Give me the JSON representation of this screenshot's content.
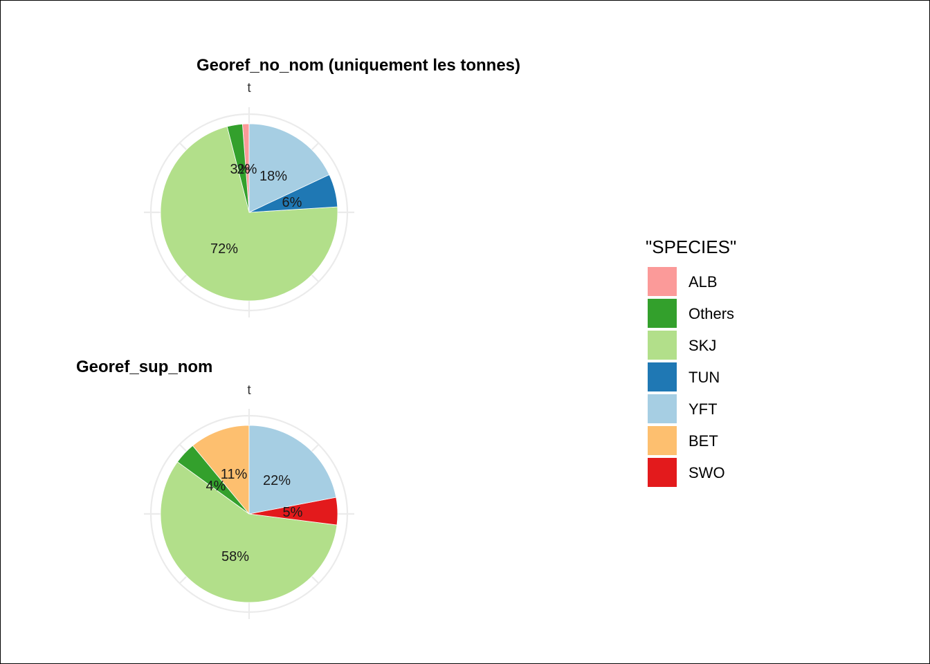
{
  "legend": {
    "title": "\"SPECIES\"",
    "items": [
      {
        "label": "ALB",
        "color": "#FB9A99"
      },
      {
        "label": "Others",
        "color": "#33A02C"
      },
      {
        "label": "SKJ",
        "color": "#B2DF8A"
      },
      {
        "label": "TUN",
        "color": "#1F78B4"
      },
      {
        "label": "YFT",
        "color": "#A6CEE3"
      },
      {
        "label": "BET",
        "color": "#FDBF6F"
      },
      {
        "label": "SWO",
        "color": "#E31A1C"
      }
    ]
  },
  "chart_data": [
    {
      "type": "pie",
      "title": "Georef_no_nom (uniquement les tonnes)",
      "axis_label": "t",
      "start": "12 o'clock",
      "direction": "counterclockwise",
      "slices": [
        {
          "label": "ALB",
          "value": 1.2,
          "text": "",
          "color": "#FB9A99"
        },
        {
          "label": "Others",
          "value": 2.8,
          "text": "3%",
          "color": "#33A02C"
        },
        {
          "label": "SKJ",
          "value": 72,
          "text": "72%",
          "color": "#B2DF8A"
        },
        {
          "label": "TUN",
          "value": 6,
          "text": "6%",
          "color": "#1F78B4"
        },
        {
          "label": "YFT",
          "value": 18,
          "text": "18%",
          "color": "#A6CEE3"
        }
      ],
      "extra_labels": [
        "2%"
      ]
    },
    {
      "type": "pie",
      "title": "Georef_sup_nom",
      "axis_label": "t",
      "start": "12 o'clock",
      "direction": "counterclockwise",
      "slices": [
        {
          "label": "BET",
          "value": 11,
          "text": "11%",
          "color": "#FDBF6F"
        },
        {
          "label": "Others",
          "value": 4,
          "text": "4%",
          "color": "#33A02C"
        },
        {
          "label": "SKJ",
          "value": 58,
          "text": "58%",
          "color": "#B2DF8A"
        },
        {
          "label": "SWO",
          "value": 5,
          "text": "5%",
          "color": "#E31A1C"
        },
        {
          "label": "YFT",
          "value": 22,
          "text": "22%",
          "color": "#A6CEE3"
        }
      ]
    }
  ]
}
